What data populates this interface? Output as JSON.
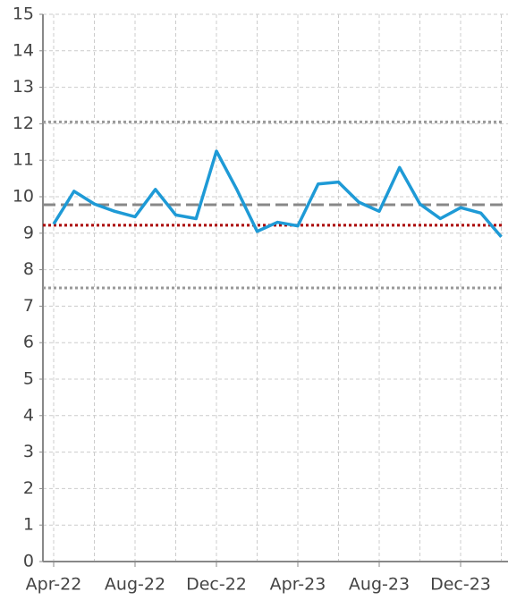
{
  "chart_data": {
    "type": "line",
    "categories": [
      "Apr-22",
      null,
      null,
      null,
      "Aug-22",
      null,
      null,
      null,
      "Dec-22",
      null,
      null,
      null,
      "Apr-23",
      null,
      null,
      null,
      "Aug-23",
      null,
      null,
      null,
      "Dec-23",
      null,
      null
    ],
    "series": [
      {
        "color": "#1e9ad6",
        "values": [
          9.25,
          10.15,
          9.8,
          9.6,
          9.45,
          10.2,
          9.5,
          9.4,
          11.25,
          10.2,
          9.05,
          9.3,
          9.2,
          10.35,
          10.4,
          9.85,
          9.6,
          10.8,
          9.8,
          9.4,
          9.7,
          9.55,
          8.9
        ]
      }
    ],
    "reference_lines": [
      {
        "value": 12.05,
        "color": "#999999",
        "style": "dotted"
      },
      {
        "value": 9.78,
        "color": "#888888",
        "style": "dashed"
      },
      {
        "value": 9.22,
        "color": "#aa0000",
        "style": "dotted"
      },
      {
        "value": 7.5,
        "color": "#999999",
        "style": "dotted"
      }
    ],
    "ylim": [
      0,
      15
    ],
    "yticks": [
      0,
      1,
      2,
      3,
      4,
      5,
      6,
      7,
      8,
      9,
      10,
      11,
      12,
      13,
      14,
      15
    ],
    "grid": true
  }
}
